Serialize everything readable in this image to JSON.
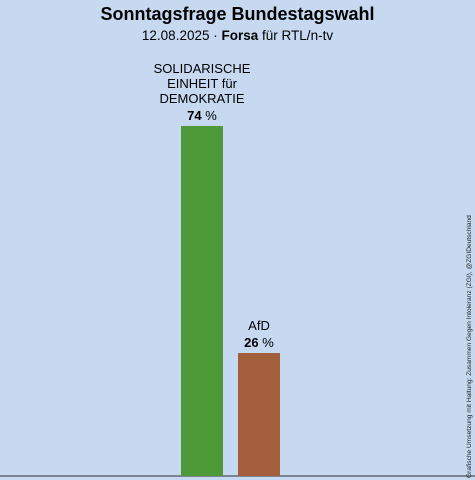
{
  "header": {
    "title": "Sonntagsfrage Bundestagswahl",
    "date": "12.08.2025",
    "separator": "·",
    "pollster": "Forsa",
    "client": "für RTL/n-tv"
  },
  "credit": "Grafische Umsetzung mit Haltung: Zusammen Gegen Intoleranz (ZGI), @ZGIDeutschland",
  "colors": {
    "background": "#c6d9f0",
    "bar_1": "#4f9a38",
    "bar_2": "#a35f3c"
  },
  "chart_data": {
    "type": "bar",
    "title": "Sonntagsfrage Bundestagswahl",
    "categories": [
      [
        "SOLIDARISCHE",
        "EINHEIT für",
        "DEMOKRATIE"
      ],
      [
        "AfD"
      ]
    ],
    "values": [
      74,
      26
    ],
    "value_labels": [
      "74",
      "26"
    ],
    "unit": "%",
    "bar_colors": [
      "#4f9a38",
      "#a35f3c"
    ],
    "ylim": [
      0,
      100
    ],
    "grid": false,
    "legend": "none",
    "xlabel": "",
    "ylabel": ""
  }
}
